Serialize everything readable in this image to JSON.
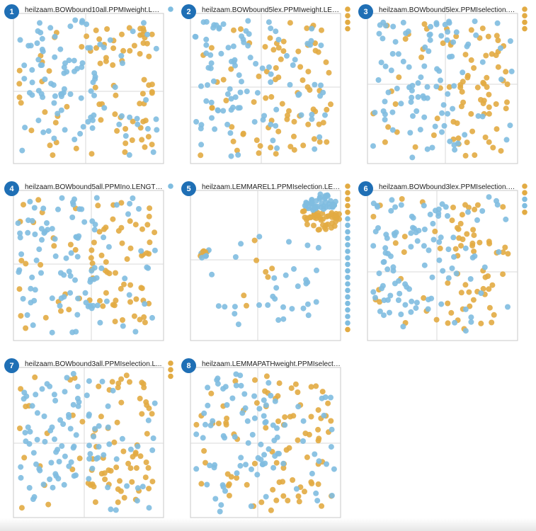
{
  "colors": {
    "blue": "#7fbde0",
    "orange": "#e2ab43",
    "badge": "#1f6fb5"
  },
  "panels": [
    {
      "number": "1",
      "title": "heilzaam.BOWbound10all.PPMIweight.LEN..."
    },
    {
      "number": "2",
      "title": "heilzaam.BOWbound5lex.PPMIweight.LENG..."
    },
    {
      "number": "3",
      "title": "heilzaam.BOWbound5lex.PPMIselection.L..."
    },
    {
      "number": "4",
      "title": "heilzaam.BOWbound5all.PPMIno.LENGTHFO..."
    },
    {
      "number": "5",
      "title": "heilzaam.LEMMAREL1.PPMIselection.LENG..."
    },
    {
      "number": "6",
      "title": "heilzaam.BOWbound3lex.PPMIselection.L..."
    },
    {
      "number": "7",
      "title": "heilzaam.BOWbound3all.PPMIselection.L..."
    },
    {
      "number": "8",
      "title": "heilzaam.LEMMAPATHweight.PPMIselectio..."
    }
  ],
  "chart_data": [
    {
      "type": "scatter",
      "panel": "1",
      "series": [
        {
          "color": "#e2ab43",
          "count": 110
        },
        {
          "color": "#7fbde0",
          "count": 140
        }
      ],
      "legend": [
        "#7fbde0"
      ],
      "grid": false
    },
    {
      "type": "scatter",
      "panel": "2",
      "series": [
        {
          "color": "#e2ab43",
          "count": 110
        },
        {
          "color": "#7fbde0",
          "count": 140
        }
      ],
      "legend": [
        "#e2ab43",
        "#e2ab43",
        "#e2ab43",
        "#e2ab43"
      ],
      "grid": false
    },
    {
      "type": "scatter",
      "panel": "3",
      "series": [
        {
          "color": "#e2ab43",
          "count": 110
        },
        {
          "color": "#7fbde0",
          "count": 140
        }
      ],
      "legend": [
        "#e2ab43",
        "#e2ab43",
        "#e2ab43",
        "#e2ab43"
      ],
      "grid": false
    },
    {
      "type": "scatter",
      "panel": "4",
      "series": [
        {
          "color": "#e2ab43",
          "count": 110
        },
        {
          "color": "#7fbde0",
          "count": 140
        }
      ],
      "legend": [
        "#7fbde0"
      ],
      "grid": false
    },
    {
      "type": "scatter",
      "panel": "5",
      "series": [
        {
          "color": "#e2ab43",
          "count": 60
        },
        {
          "color": "#7fbde0",
          "count": 60
        }
      ],
      "legend": [
        "#e2ab43",
        "#e2ab43",
        "#e2ab43",
        "#e2ab43",
        "#e2ab43",
        "#7fbde0",
        "#7fbde0",
        "#7fbde0",
        "#7fbde0",
        "#7fbde0",
        "#7fbde0",
        "#7fbde0",
        "#7fbde0",
        "#7fbde0",
        "#7fbde0",
        "#7fbde0",
        "#7fbde0",
        "#7fbde0",
        "#7fbde0",
        "#7fbde0",
        "#7fbde0",
        "#7fbde0",
        "#e2ab43"
      ],
      "grid": false
    },
    {
      "type": "scatter",
      "panel": "6",
      "series": [
        {
          "color": "#e2ab43",
          "count": 100
        },
        {
          "color": "#7fbde0",
          "count": 150
        }
      ],
      "legend": [
        "#e2ab43",
        "#e2ab43",
        "#7fbde0",
        "#7fbde0",
        "#e2ab43"
      ],
      "grid": false
    },
    {
      "type": "scatter",
      "panel": "7",
      "series": [
        {
          "color": "#e2ab43",
          "count": 110
        },
        {
          "color": "#7fbde0",
          "count": 140
        }
      ],
      "legend": [
        "#e2ab43",
        "#e2ab43",
        "#e2ab43"
      ],
      "grid": false
    },
    {
      "type": "scatter",
      "panel": "8",
      "series": [
        {
          "color": "#e2ab43",
          "count": 120
        },
        {
          "color": "#7fbde0",
          "count": 130
        }
      ],
      "legend": [],
      "grid": false
    }
  ]
}
